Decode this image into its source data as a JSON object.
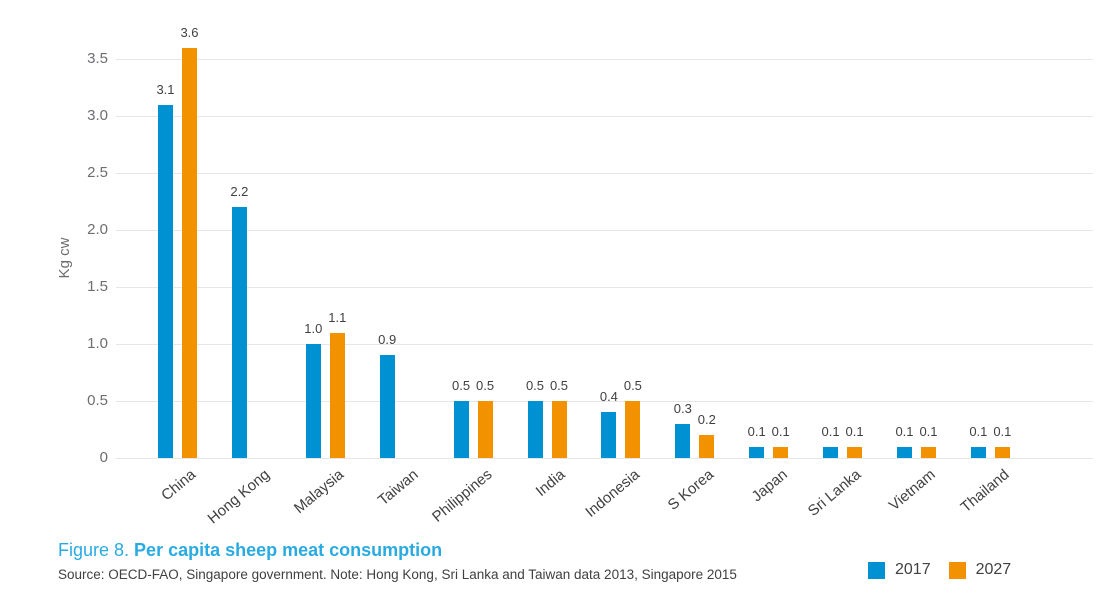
{
  "figure": {
    "label": "Figure 8.",
    "title": "Per capita sheep meat consumption",
    "source_note": "Source: OECD-FAO, Singapore government. Note: Hong Kong, Sri Lanka and Taiwan data 2013, Singapore 2015"
  },
  "colors": {
    "series_2017": "#0091D2",
    "series_2027": "#F39200",
    "title_blue": "#29ABE2",
    "gridline": "#E6E6E6",
    "axis_text": "#6D6E71",
    "label_text": "#414042"
  },
  "chart_data": {
    "type": "bar",
    "title": "Per capita sheep meat consumption",
    "xlabel": "",
    "ylabel": "Kg cw",
    "ylim": [
      0,
      3.5
    ],
    "yticks": [
      0,
      0.5,
      1.0,
      1.5,
      2.0,
      2.5,
      3.0,
      3.5
    ],
    "grid": true,
    "data_labels": true,
    "legend_position": "bottom-right",
    "categories": [
      "China",
      "Hong Kong",
      "Malaysia",
      "Taiwan",
      "Philippines",
      "India",
      "Indonesia",
      "S Korea",
      "Japan",
      "Sri Lanka",
      "Vietnam",
      "Thailand"
    ],
    "series": [
      {
        "name": "2017",
        "color": "#0091D2",
        "values": [
          3.1,
          2.2,
          1.0,
          0.9,
          0.5,
          0.5,
          0.4,
          0.3,
          0.1,
          0.1,
          0.1,
          0.1
        ]
      },
      {
        "name": "2027",
        "color": "#F39200",
        "values": [
          3.6,
          null,
          1.1,
          null,
          0.5,
          0.5,
          0.5,
          0.2,
          0.1,
          0.1,
          0.1,
          0.1
        ]
      }
    ]
  }
}
